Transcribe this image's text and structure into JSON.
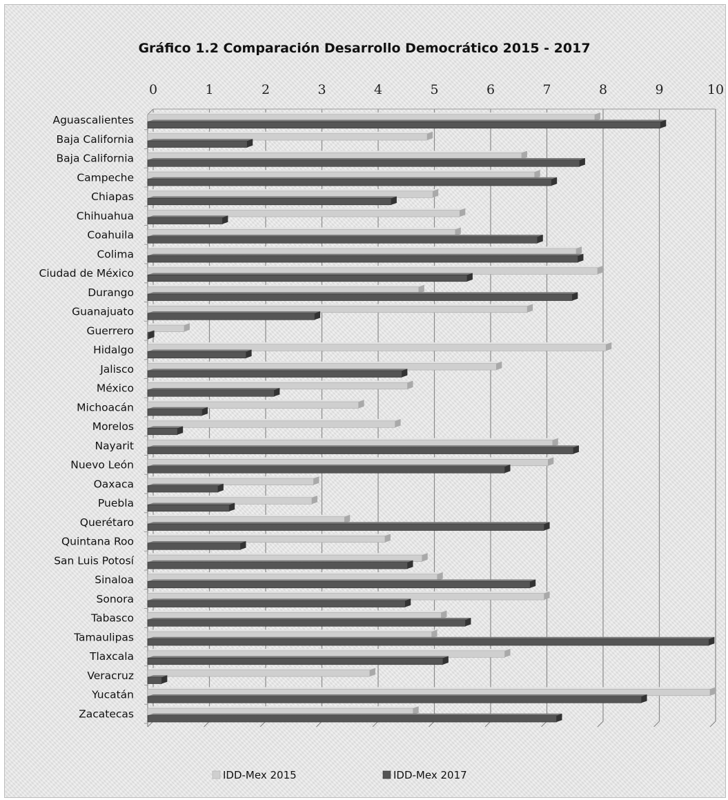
{
  "chart_data": {
    "type": "bar",
    "orientation": "horizontal",
    "style": "3d",
    "title": "Gráfico 1.2 Comparación Desarrollo Democrático 2015 - 2017",
    "xlabel": "",
    "ylabel": "",
    "xlim": [
      0,
      10
    ],
    "x_ticks": [
      "0",
      "1",
      "2",
      "3",
      "4",
      "5",
      "6",
      "7",
      "8",
      "9",
      "10"
    ],
    "x_axis_position": "top",
    "grid": true,
    "legend_position": "bottom",
    "categories": [
      "Aguascalientes",
      "Baja California",
      "Baja California",
      "Campeche",
      "Chiapas",
      "Chihuahua",
      "Coahuila",
      "Colima",
      "Ciudad de México",
      "Durango",
      "Guanajuato",
      "Guerrero",
      "Hidalgo",
      "Jalisco",
      "México",
      "Michoacán",
      "Morelos",
      "Nayarit",
      "Nuevo León",
      "Oaxaca",
      "Puebla",
      "Querétaro",
      "Quintana Roo",
      "San Luis Potosí",
      "Sinaloa",
      "Sonora",
      "Tabasco",
      "Tamaulipas",
      "Tlaxcala",
      "Veracruz",
      "Yucatán",
      "Zacatecas"
    ],
    "series": [
      {
        "name": "IDD-Mex 2015",
        "color": "#cfcfcf",
        "values": [
          7.95,
          4.97,
          6.65,
          6.88,
          5.07,
          5.55,
          5.47,
          7.62,
          8.0,
          4.82,
          6.75,
          0.65,
          8.15,
          6.2,
          4.62,
          3.75,
          4.4,
          7.2,
          7.12,
          2.95,
          2.92,
          3.5,
          4.22,
          4.88,
          5.15,
          7.05,
          5.22,
          5.05,
          6.35,
          3.95,
          10.0,
          4.72
        ]
      },
      {
        "name": "IDD-Mex 2017",
        "color": "#555555",
        "values": [
          9.12,
          1.77,
          7.68,
          7.18,
          4.33,
          1.33,
          6.93,
          7.65,
          5.68,
          7.55,
          2.97,
          0.02,
          1.75,
          4.52,
          2.25,
          0.97,
          0.53,
          7.57,
          6.35,
          1.25,
          1.45,
          7.05,
          1.65,
          4.62,
          6.8,
          4.58,
          5.65,
          9.98,
          5.25,
          0.25,
          8.78,
          7.27
        ]
      }
    ]
  }
}
